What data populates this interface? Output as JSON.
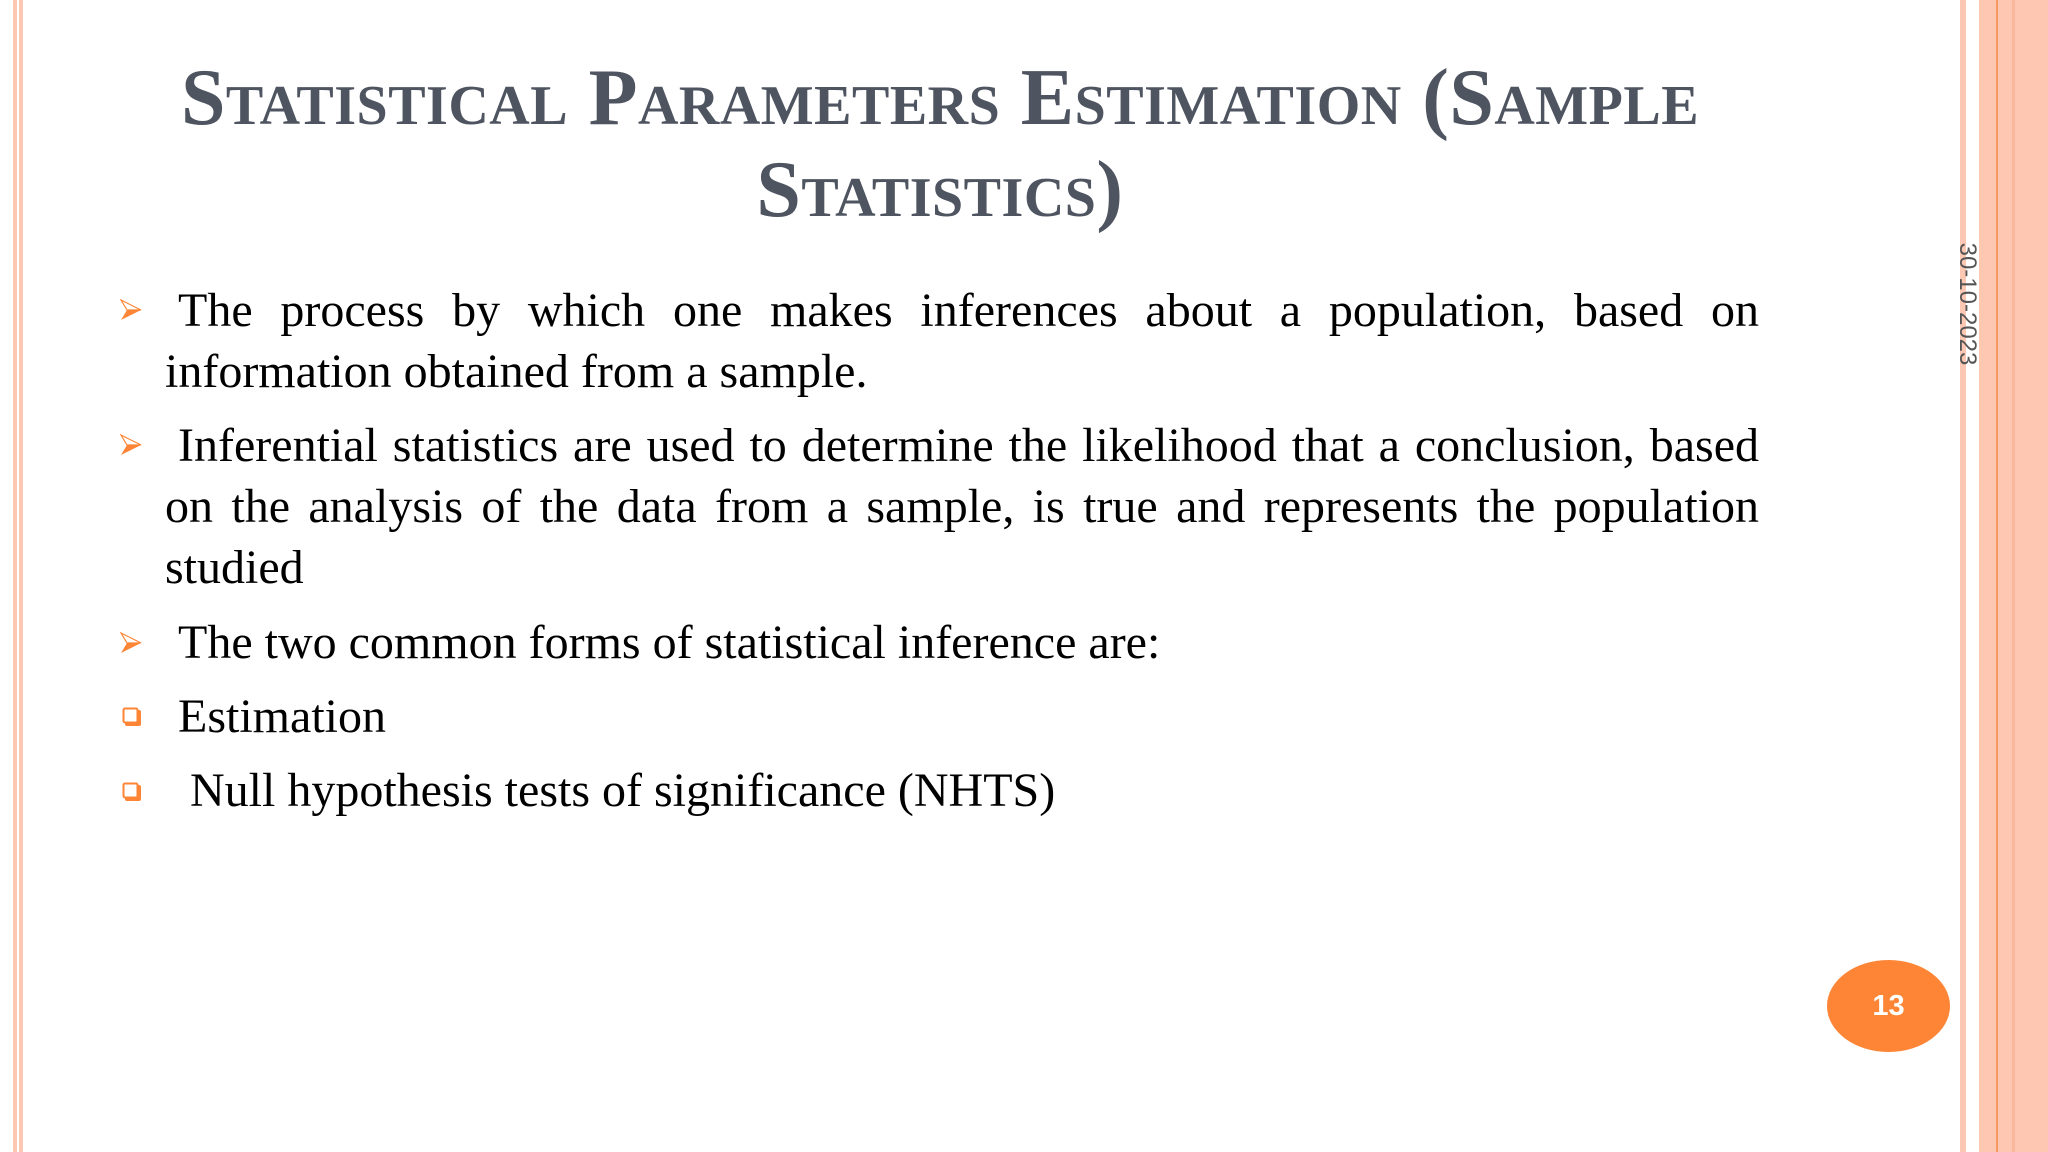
{
  "slide": {
    "title_line1": "Statistical Parameters Estimation (Sample",
    "title_line2": "Statistics)",
    "bullets": [
      {
        "icon": "arrow-bullet-icon",
        "text": "The process by which one makes inferences about a population, based on information obtained from a sample."
      },
      {
        "icon": "arrow-bullet-icon",
        "text": "Inferential statistics are used to determine the likelihood that a conclusion, based on the analysis of the data from a sample, is true and represents the population studied"
      },
      {
        "icon": "arrow-bullet-icon",
        "text": "The two common forms of statistical inference are:"
      },
      {
        "icon": "square-bullet-icon",
        "text": "Estimation"
      },
      {
        "icon": "square-bullet-icon",
        "text": "Null hypothesis tests of significance (NHTS)"
      }
    ],
    "date": "30-10-2023",
    "page_number": "13"
  },
  "colors": {
    "accent": "#fd8535",
    "border": "#fcc8b4",
    "title": "#4e5460"
  }
}
